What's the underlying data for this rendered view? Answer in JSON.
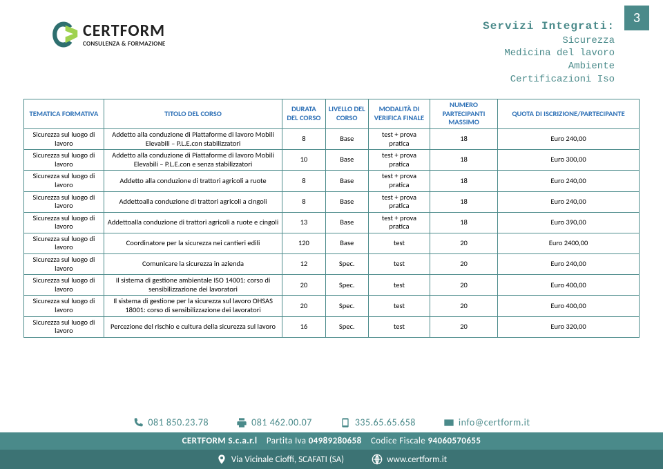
{
  "page_number": "3",
  "logo": {
    "brand": "CERTFORM",
    "sub": "CONSULENZA & FORMAZIONE"
  },
  "services": {
    "title": "Servizi Integrati:",
    "lines": [
      "Sicurezza",
      "Medicina del lavoro",
      "Ambiente",
      "Certificazioni Iso"
    ]
  },
  "table": {
    "headers": [
      "TEMATICA FORMATIVA",
      "TITOLO DEL CORSO",
      "DURATA DEL CORSO",
      "LIVELLO DEL CORSO",
      "MODALITÀ DI VERIFICA FINALE",
      "NUMERO PARTECIPANTI MASSIMO",
      "QUOTA DI ISCRIZIONE/PARTECIPANTE"
    ],
    "rows": [
      [
        "Sicurezza sul luogo di lavoro",
        "Addetto alla conduzione di Piattaforme di lavoro Mobili Elevabili – P.L.E.con stabilizzatori",
        "8",
        "Base",
        "test + prova pratica",
        "18",
        "Euro 240,00"
      ],
      [
        "Sicurezza sul luogo di lavoro",
        "Addetto alla conduzione di Piattaforme di lavoro Mobili Elevabili – P.L.E.con e senza stabilizzatori",
        "10",
        "Base",
        "test + prova pratica",
        "18",
        "Euro 300,00"
      ],
      [
        "Sicurezza sul luogo di lavoro",
        "Addetto alla conduzione di trattori agricoli a ruote",
        "8",
        "Base",
        "test + prova pratica",
        "18",
        "Euro 240,00"
      ],
      [
        "Sicurezza sul luogo di lavoro",
        "Addettoalla conduzione di trattori agricoli a cingoli",
        "8",
        "Base",
        "test + prova pratica",
        "18",
        "Euro 240,00"
      ],
      [
        "Sicurezza sul luogo di lavoro",
        "Addettoalla conduzione di trattori agricoli a ruote e cingoli",
        "13",
        "Base",
        "test + prova pratica",
        "18",
        "Euro 390,00"
      ],
      [
        "Sicurezza sul luogo di lavoro",
        "Coordinatore per la sicurezza nei cantieri edili",
        "120",
        "Base",
        "test",
        "20",
        "Euro 2400,00"
      ],
      [
        "Sicurezza sul luogo di lavoro",
        "Comunicare la sicurezza in azienda",
        "12",
        "Spec.",
        "test",
        "20",
        "Euro 240,00"
      ],
      [
        "Sicurezza sul luogo di lavoro",
        "Il sistema di gestione ambientale ISO 14001: corso di sensibilizzazione dei lavoratori",
        "20",
        "Spec.",
        "test",
        "20",
        "Euro 400,00"
      ],
      [
        "Sicurezza sul luogo di lavoro",
        "Il sistema di gestione per la sicurezza sul lavoro OHSAS 18001: corso di sensibilizzazione dei lavoratori",
        "20",
        "Spec.",
        "test",
        "20",
        "Euro 400,00"
      ],
      [
        "Sicurezza sul luogo di lavoro",
        "Percezione del rischio e cultura della sicurezza sul lavoro",
        "16",
        "Spec.",
        "test",
        "20",
        "Euro 320,00"
      ]
    ]
  },
  "footer": {
    "contacts": [
      {
        "icon": "phone",
        "value": "081 850.23.78"
      },
      {
        "icon": "fax",
        "value": "081 462.00.07"
      },
      {
        "icon": "mobile",
        "value": "335.65.65.658"
      },
      {
        "icon": "mail",
        "value": "info@certform.it"
      }
    ],
    "bar1": {
      "company": "CERTFORM S.c.a.r.l",
      "piva_label": "Partita Iva",
      "piva": "04989280658",
      "cf_label": "Codice Fiscale",
      "cf": "94060570655"
    },
    "bar2": {
      "addr_label": "Via Vicinale Cioffi, SCAFATI (SA)",
      "web": "www.certform.it"
    }
  }
}
